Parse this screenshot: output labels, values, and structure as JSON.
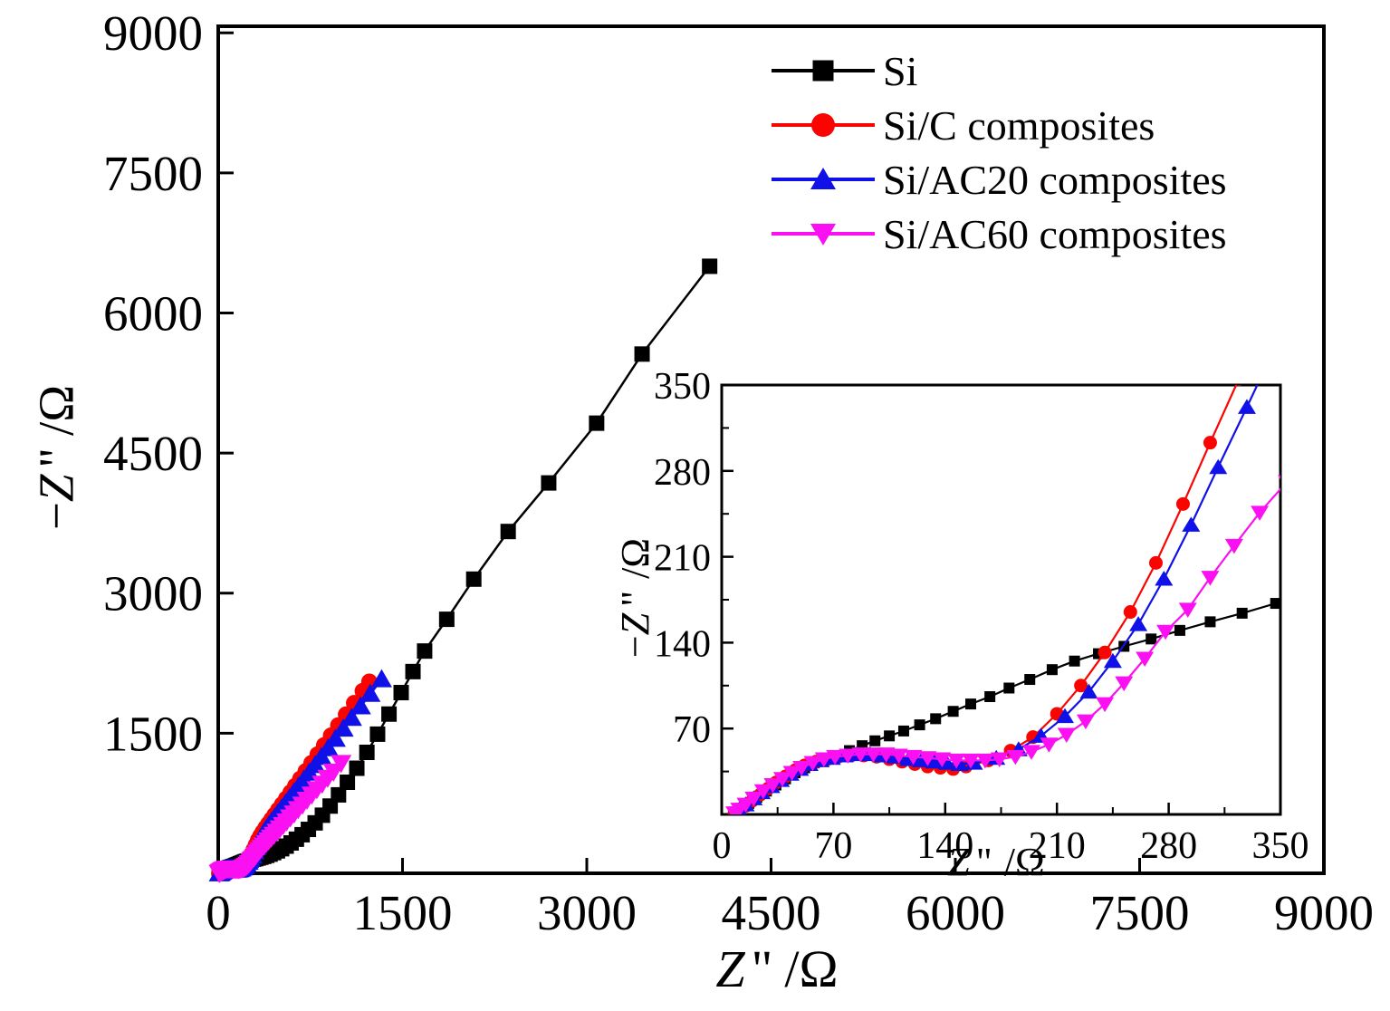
{
  "page": {
    "background": "#ffffff"
  },
  "labels": {
    "minus": "−",
    "z_var": "Z",
    "prime": "\"",
    "unit": "/Ω"
  },
  "chart_data": {
    "type": "line",
    "title": "",
    "xlabel": "Z \" /Ω",
    "ylabel": "−Z \" /Ω",
    "grid": false,
    "legend_position": "top-right-inside",
    "main_axes": {
      "xlim": [
        0,
        9000
      ],
      "ylim": [
        0,
        9070
      ],
      "xticks": [
        0,
        1500,
        3000,
        4500,
        6000,
        7500,
        9000
      ],
      "yticks": [
        1500,
        3000,
        4500,
        6000,
        7500,
        9000
      ]
    },
    "inset_axes": {
      "xlim": [
        0,
        350
      ],
      "ylim": [
        0,
        350
      ],
      "xticks": [
        0,
        70,
        140,
        210,
        280,
        350
      ],
      "yticks": [
        70,
        140,
        210,
        280,
        350
      ],
      "minor_ticks": [
        35,
        105,
        175,
        245,
        315
      ],
      "xlabel": "Z \" /Ω",
      "ylabel": "−Z \" /Ω"
    },
    "series": [
      {
        "name": "Si",
        "color": "#000000",
        "marker": "square",
        "points": [
          [
            8,
            2
          ],
          [
            12,
            5
          ],
          [
            17,
            9
          ],
          [
            22,
            14
          ],
          [
            28,
            19
          ],
          [
            34,
            24
          ],
          [
            40,
            29
          ],
          [
            46,
            34
          ],
          [
            52,
            38
          ],
          [
            58,
            42
          ],
          [
            65,
            45
          ],
          [
            72,
            48
          ],
          [
            80,
            52
          ],
          [
            88,
            56
          ],
          [
            96,
            60
          ],
          [
            105,
            64
          ],
          [
            114,
            68
          ],
          [
            124,
            73
          ],
          [
            134,
            78
          ],
          [
            145,
            84
          ],
          [
            156,
            90
          ],
          [
            168,
            96
          ],
          [
            180,
            103
          ],
          [
            193,
            110
          ],
          [
            207,
            118
          ],
          [
            221,
            125
          ],
          [
            236,
            131
          ],
          [
            252,
            137
          ],
          [
            269,
            143
          ],
          [
            287,
            150
          ],
          [
            306,
            157
          ],
          [
            326,
            164
          ],
          [
            347,
            172
          ],
          [
            370,
            181
          ],
          [
            395,
            192
          ],
          [
            422,
            205
          ],
          [
            451,
            221
          ],
          [
            482,
            240
          ],
          [
            516,
            263
          ],
          [
            553,
            291
          ],
          [
            593,
            325
          ],
          [
            636,
            365
          ],
          [
            683,
            413
          ],
          [
            734,
            470
          ],
          [
            789,
            540
          ],
          [
            848,
            622
          ],
          [
            911,
            720
          ],
          [
            979,
            840
          ],
          [
            1051,
            975
          ],
          [
            1128,
            1125
          ],
          [
            1210,
            1295
          ],
          [
            1297,
            1490
          ],
          [
            1390,
            1705
          ],
          [
            1489,
            1935
          ],
          [
            1585,
            2160
          ],
          [
            1680,
            2380
          ],
          [
            1860,
            2720
          ],
          [
            2080,
            3150
          ],
          [
            2360,
            3660
          ],
          [
            2690,
            4180
          ],
          [
            3080,
            4820
          ],
          [
            3450,
            5560
          ],
          [
            4000,
            6500
          ]
        ]
      },
      {
        "name": "Si/C composites",
        "color": "#fa0300",
        "marker": "circle",
        "points": [
          [
            8,
            1
          ],
          [
            11,
            3
          ],
          [
            15,
            7
          ],
          [
            19,
            11
          ],
          [
            24,
            16
          ],
          [
            29,
            21
          ],
          [
            34,
            26
          ],
          [
            40,
            31
          ],
          [
            46,
            36
          ],
          [
            52,
            40
          ],
          [
            59,
            43
          ],
          [
            66,
            45
          ],
          [
            73,
            47
          ],
          [
            81,
            48
          ],
          [
            89,
            48
          ],
          [
            97,
            47
          ],
          [
            105,
            45
          ],
          [
            113,
            43
          ],
          [
            121,
            41
          ],
          [
            129,
            39
          ],
          [
            137,
            38
          ],
          [
            145,
            37
          ],
          [
            153,
            39
          ],
          [
            167,
            44
          ],
          [
            181,
            52
          ],
          [
            195,
            63
          ],
          [
            210,
            82
          ],
          [
            225,
            105
          ],
          [
            240,
            132
          ],
          [
            256,
            165
          ],
          [
            272,
            205
          ],
          [
            289,
            253
          ],
          [
            306,
            303
          ],
          [
            324,
            355
          ],
          [
            343,
            400
          ],
          [
            363,
            443
          ],
          [
            385,
            487
          ],
          [
            408,
            530
          ],
          [
            433,
            577
          ],
          [
            460,
            627
          ],
          [
            489,
            681
          ],
          [
            520,
            738
          ],
          [
            553,
            799
          ],
          [
            589,
            866
          ],
          [
            627,
            936
          ],
          [
            668,
            1012
          ],
          [
            712,
            1093
          ],
          [
            759,
            1180
          ],
          [
            809,
            1273
          ],
          [
            862,
            1371
          ],
          [
            918,
            1475
          ],
          [
            977,
            1584
          ],
          [
            1040,
            1700
          ],
          [
            1106,
            1823
          ],
          [
            1176,
            1952
          ],
          [
            1230,
            2052
          ]
        ]
      },
      {
        "name": "Si/AC20 composites",
        "color": "#1010e8",
        "marker": "triangle-up",
        "points": [
          [
            8,
            1
          ],
          [
            11,
            4
          ],
          [
            15,
            8
          ],
          [
            20,
            13
          ],
          [
            25,
            18
          ],
          [
            31,
            23
          ],
          [
            37,
            28
          ],
          [
            43,
            33
          ],
          [
            49,
            37
          ],
          [
            55,
            41
          ],
          [
            62,
            44
          ],
          [
            69,
            46
          ],
          [
            77,
            48
          ],
          [
            85,
            49
          ],
          [
            93,
            49
          ],
          [
            101,
            48
          ],
          [
            109,
            47
          ],
          [
            117,
            45
          ],
          [
            125,
            44
          ],
          [
            133,
            43
          ],
          [
            141,
            42
          ],
          [
            149,
            41
          ],
          [
            158,
            42
          ],
          [
            172,
            46
          ],
          [
            186,
            53
          ],
          [
            200,
            64
          ],
          [
            215,
            80
          ],
          [
            230,
            100
          ],
          [
            245,
            125
          ],
          [
            261,
            155
          ],
          [
            277,
            192
          ],
          [
            294,
            236
          ],
          [
            311,
            283
          ],
          [
            329,
            332
          ],
          [
            347,
            382
          ],
          [
            366,
            426
          ],
          [
            387,
            468
          ],
          [
            410,
            510
          ],
          [
            434,
            553
          ],
          [
            459,
            597
          ],
          [
            487,
            645
          ],
          [
            516,
            695
          ],
          [
            547,
            748
          ],
          [
            581,
            806
          ],
          [
            617,
            868
          ],
          [
            655,
            933
          ],
          [
            697,
            1004
          ],
          [
            741,
            1079
          ],
          [
            789,
            1161
          ],
          [
            840,
            1248
          ],
          [
            895,
            1341
          ],
          [
            954,
            1442
          ],
          [
            1018,
            1551
          ],
          [
            1086,
            1666
          ],
          [
            1159,
            1790
          ],
          [
            1237,
            1923
          ],
          [
            1330,
            2080
          ]
        ]
      },
      {
        "name": "Si/AC60 composites",
        "color": "#fa10f0",
        "marker": "triangle-down",
        "points": [
          [
            8,
            1
          ],
          [
            11,
            4
          ],
          [
            15,
            8
          ],
          [
            20,
            13
          ],
          [
            26,
            19
          ],
          [
            32,
            24
          ],
          [
            38,
            29
          ],
          [
            44,
            34
          ],
          [
            50,
            38
          ],
          [
            57,
            42
          ],
          [
            64,
            45
          ],
          [
            71,
            47
          ],
          [
            79,
            48
          ],
          [
            87,
            49
          ],
          [
            95,
            49
          ],
          [
            103,
            49
          ],
          [
            111,
            48
          ],
          [
            120,
            47
          ],
          [
            129,
            46
          ],
          [
            138,
            45
          ],
          [
            147,
            44
          ],
          [
            156,
            44
          ],
          [
            165,
            44
          ],
          [
            174,
            45
          ],
          [
            184,
            47
          ],
          [
            194,
            51
          ],
          [
            205,
            57
          ],
          [
            216,
            65
          ],
          [
            228,
            76
          ],
          [
            240,
            90
          ],
          [
            252,
            107
          ],
          [
            265,
            127
          ],
          [
            278,
            149
          ],
          [
            292,
            167
          ],
          [
            306,
            193
          ],
          [
            321,
            219
          ],
          [
            337,
            246
          ],
          [
            354,
            271
          ],
          [
            372,
            296
          ],
          [
            391,
            322
          ],
          [
            411,
            350
          ],
          [
            432,
            379
          ],
          [
            454,
            410
          ],
          [
            478,
            444
          ],
          [
            503,
            479
          ],
          [
            529,
            515
          ],
          [
            557,
            554
          ],
          [
            587,
            596
          ],
          [
            618,
            639
          ],
          [
            651,
            685
          ],
          [
            686,
            734
          ],
          [
            723,
            786
          ],
          [
            762,
            841
          ],
          [
            803,
            898
          ],
          [
            846,
            958
          ],
          [
            891,
            1021
          ],
          [
            938,
            1087
          ],
          [
            1000,
            1180
          ]
        ]
      }
    ]
  }
}
